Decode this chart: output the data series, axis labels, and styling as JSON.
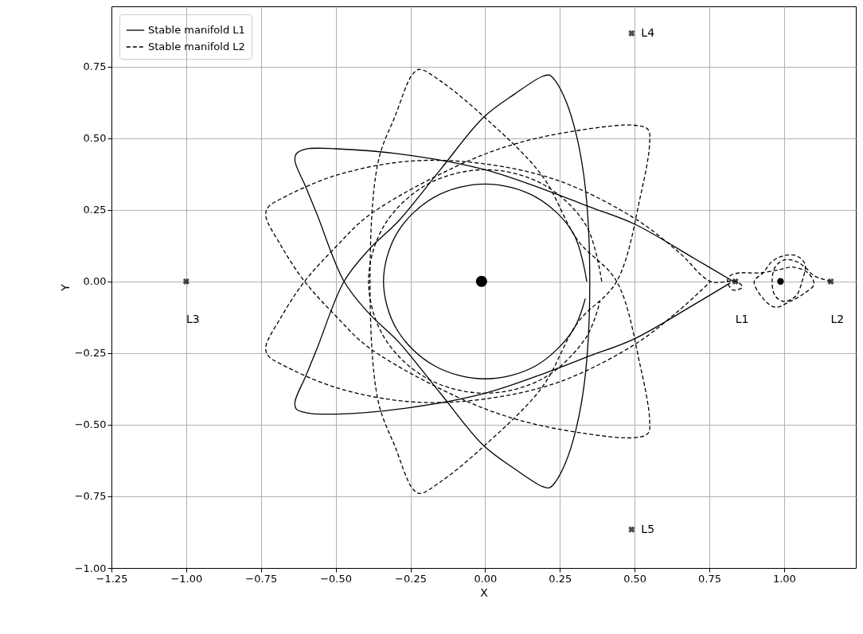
{
  "chart_data": {
    "type": "line",
    "xlabel": "X",
    "ylabel": "Y",
    "xlim": [
      -1.25,
      1.24
    ],
    "ylim": [
      -1.0,
      0.96
    ],
    "xticks": [
      {
        "value": -1.25,
        "label": "−1.25"
      },
      {
        "value": -1.0,
        "label": "−1.00"
      },
      {
        "value": -0.75,
        "label": "−0.75"
      },
      {
        "value": -0.5,
        "label": "−0.50"
      },
      {
        "value": -0.25,
        "label": "−0.25"
      },
      {
        "value": 0,
        "label": "0.00"
      },
      {
        "value": 0.25,
        "label": "0.25"
      },
      {
        "value": 0.5,
        "label": "0.50"
      },
      {
        "value": 0.75,
        "label": "0.75"
      },
      {
        "value": 1.0,
        "label": "1.00"
      }
    ],
    "yticks": [
      {
        "value": -1.0,
        "label": "−1.00"
      },
      {
        "value": -0.75,
        "label": "−0.75"
      },
      {
        "value": -0.5,
        "label": "−0.50"
      },
      {
        "value": -0.25,
        "label": "−0.25"
      },
      {
        "value": 0,
        "label": "0.00"
      },
      {
        "value": 0.25,
        "label": "0.25"
      },
      {
        "value": 0.5,
        "label": "0.50"
      },
      {
        "value": 0.75,
        "label": "0.75"
      }
    ],
    "grid": true,
    "legend": "top left",
    "series": [
      {
        "name": "Stable manifold L1",
        "color": "#000000",
        "line_style": "solid",
        "x": [
          0.83,
          0.7,
          0.5,
          0.35,
          0.2,
          0,
          -0.25,
          -0.5,
          -0.6,
          -0.632,
          -0.636,
          -0.6,
          -0.562,
          -0.472,
          -0.39,
          -0.287,
          -0.15,
          -0.006,
          0.1,
          0.19,
          0.215,
          0.235,
          0.27,
          0.304,
          0.33,
          0.345,
          0.35,
          0.345,
          0.33,
          0.304,
          0.27,
          0.235,
          0.215,
          0.19,
          0.1,
          -0.006,
          -0.15,
          -0.287,
          -0.39,
          -0.472,
          -0.562,
          -0.6,
          -0.636,
          -0.632,
          -0.6,
          -0.5,
          -0.25,
          0,
          0.2,
          0.35,
          0.5,
          0.7,
          0.82
        ],
        "values": [
          0,
          0.08,
          0.2,
          0.26,
          0.32,
          0.39,
          0.44,
          0.463,
          0.462,
          0.445,
          0.42,
          0.33,
          0.233,
          0,
          -0.11,
          -0.214,
          -0.39,
          -0.572,
          -0.655,
          -0.715,
          -0.72,
          -0.7,
          -0.63,
          -0.516,
          -0.37,
          -0.2,
          0,
          0.2,
          0.37,
          0.516,
          0.63,
          0.7,
          0.72,
          0.715,
          0.655,
          0.572,
          0.39,
          0.214,
          0.11,
          0,
          -0.233,
          -0.33,
          -0.42,
          -0.445,
          -0.458,
          -0.463,
          -0.44,
          -0.39,
          -0.32,
          -0.26,
          -0.2,
          -0.08,
          -0.005
        ]
      },
      {
        "name": "Stable manifold L2",
        "color": "#000000",
        "line_style": "dashed",
        "x": [
          1.156,
          1.1,
          1.07,
          1.04,
          1.0,
          0.97,
          0.96,
          0.97,
          1.0,
          1.04,
          1.06,
          1.07,
          1.04,
          1.0,
          0.96,
          0.93,
          0.9,
          0.93,
          0.97,
          1.02,
          1.07,
          1.1,
          1.08,
          1.03,
          0.98,
          0.92,
          0.88,
          0.85,
          0.82,
          0.81,
          0.83,
          0.86,
          0.84,
          0.754,
          0.65,
          0.5,
          0.25,
          0,
          -0.25,
          -0.5,
          -0.68,
          -0.725,
          -0.734,
          -0.68,
          -0.604,
          -0.5,
          -0.39,
          -0.1,
          0.1,
          0.33,
          0.5,
          0.545,
          0.55,
          0.52,
          0.44,
          0.31,
          0.19,
          0,
          -0.15,
          -0.22,
          -0.245,
          -0.3,
          -0.358,
          -0.385,
          -0.358,
          -0.3,
          -0.245,
          -0.22,
          -0.15,
          0,
          0.19,
          0.31,
          0.44,
          0.52,
          0.55,
          0.545,
          0.5,
          0.33,
          0.1,
          -0.1,
          -0.39,
          -0.5,
          -0.604,
          -0.68,
          -0.734,
          -0.725,
          -0.68,
          -0.5,
          -0.25,
          0,
          0.25,
          0.5,
          0.65,
          0.754
        ],
        "values": [
          0,
          0.02,
          0.05,
          0.07,
          0.075,
          0.05,
          0,
          -0.05,
          -0.07,
          -0.05,
          0,
          0.06,
          0.09,
          0.09,
          0.07,
          0.03,
          0,
          -0.06,
          -0.09,
          -0.07,
          -0.04,
          -0.01,
          0.03,
          0.05,
          0.04,
          0.03,
          0.03,
          0.03,
          0.02,
          0,
          -0.03,
          -0.02,
          0,
          0,
          0.1,
          0.22,
          0.35,
          0.41,
          0.42,
          0.37,
          0.29,
          0.26,
          0.23,
          0.12,
          0,
          -0.12,
          -0.23,
          -0.4,
          -0.48,
          -0.53,
          -0.545,
          -0.53,
          -0.48,
          -0.3,
          0,
          0.143,
          0.37,
          0.571,
          0.7,
          0.74,
          0.72,
          0.58,
          0.417,
          0,
          -0.417,
          -0.58,
          -0.72,
          -0.74,
          -0.7,
          -0.571,
          -0.37,
          -0.143,
          0,
          0.3,
          0.48,
          0.53,
          0.545,
          0.53,
          0.48,
          0.4,
          0.23,
          0.12,
          0,
          -0.12,
          -0.23,
          -0.26,
          -0.29,
          -0.37,
          -0.42,
          -0.41,
          -0.35,
          -0.22,
          -0.1,
          0
        ]
      },
      {
        "color": "#000000",
        "line_style": "solid",
        "x": [
          0.34,
          0.294,
          0.17,
          0,
          -0.17,
          -0.294,
          -0.34,
          -0.294,
          -0.17,
          0,
          0.17,
          0.294,
          0.335
        ],
        "values": [
          0,
          0.17,
          0.294,
          0.34,
          0.294,
          0.17,
          0,
          -0.17,
          -0.294,
          -0.34,
          -0.294,
          -0.17,
          -0.06
        ]
      },
      {
        "color": "#000000",
        "line_style": "dashed",
        "x": [
          0.39,
          0.338,
          0.195,
          0,
          -0.195,
          -0.338,
          -0.39,
          -0.338,
          -0.195,
          0,
          0.195,
          0.338,
          0.384
        ],
        "values": [
          0,
          0.195,
          0.338,
          0.39,
          0.338,
          0.195,
          0,
          -0.195,
          -0.338,
          -0.39,
          -0.338,
          -0.195,
          -0.07
        ]
      },
      {
        "type": "scatter",
        "marker": "cross",
        "color": "#000000",
        "x": [
          0.837,
          1.156,
          -1.0,
          0.49,
          0.49
        ],
        "values": [
          0,
          0,
          0,
          0.866,
          -0.866
        ]
      },
      {
        "type": "bubble",
        "color": "#000000",
        "x": [
          -0.012,
          0.988
        ],
        "values": [
          0,
          0
        ],
        "sizes": [
          1,
          0.35
        ]
      }
    ],
    "annotations": [
      {
        "text": "L1",
        "x": 0.837,
        "y": 0
      },
      {
        "text": "L2",
        "x": 1.156,
        "y": 0
      },
      {
        "text": "L3",
        "x": -1.0,
        "y": 0
      },
      {
        "text": "L4",
        "x": 0.49,
        "y": 0.866
      },
      {
        "text": "L5",
        "x": 0.49,
        "y": -0.866
      }
    ]
  }
}
